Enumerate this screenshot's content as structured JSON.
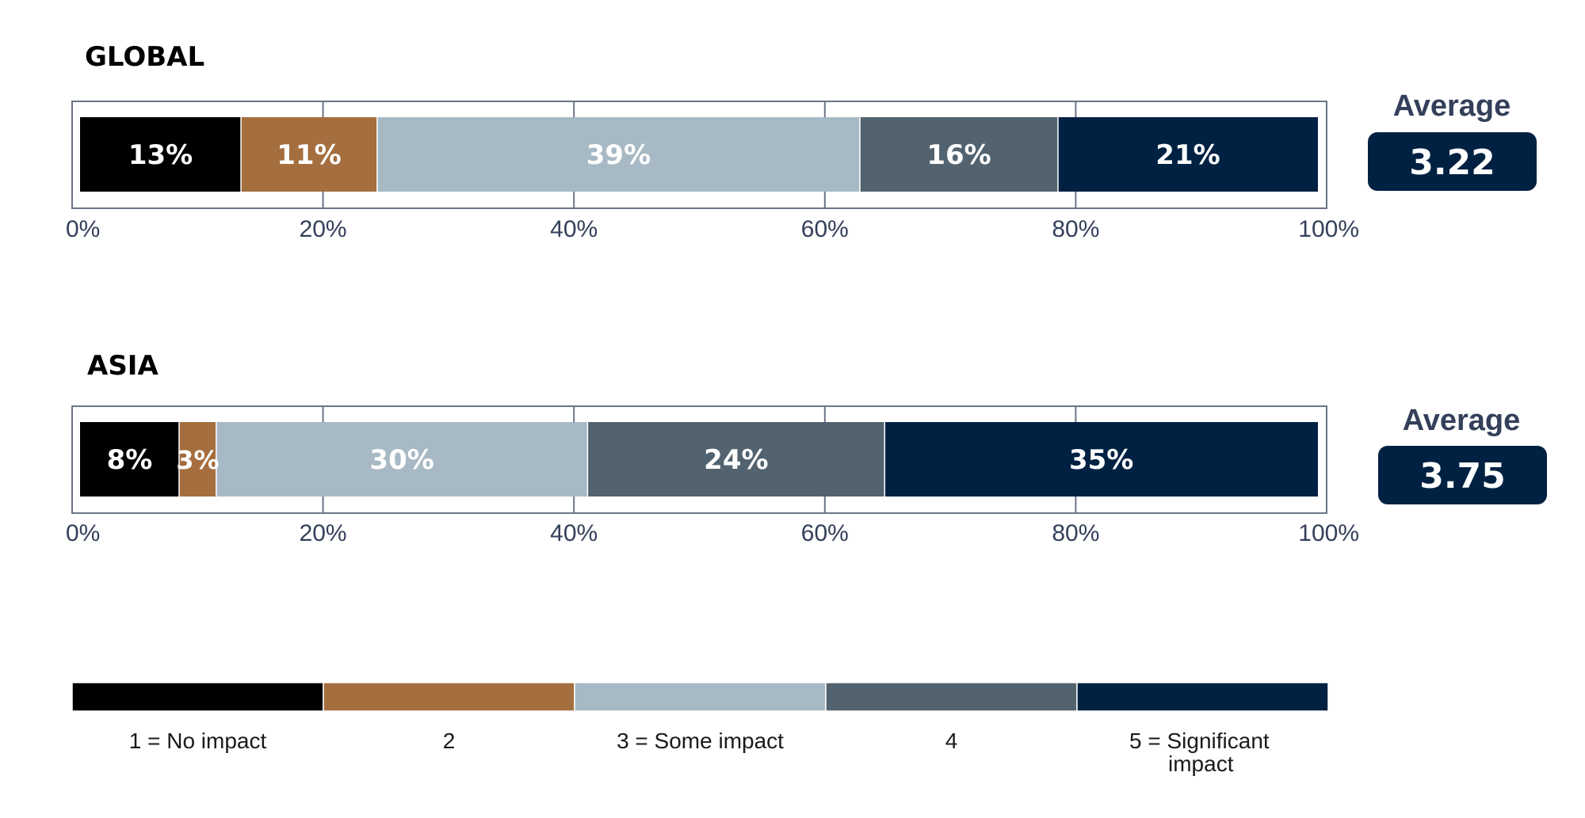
{
  "chart_data": [
    {
      "type": "bar",
      "orientation": "horizontal-stacked-100",
      "title": "GLOBAL",
      "series": [
        {
          "name": "1 = No impact",
          "value": 13,
          "label": "13%"
        },
        {
          "name": "2",
          "value": 11,
          "label": "11%"
        },
        {
          "name": "3 = Some impact",
          "value": 39,
          "label": "39%"
        },
        {
          "name": "4",
          "value": 16,
          "label": "16%"
        },
        {
          "name": "5 = Significant impact",
          "value": 21,
          "label": "21%"
        }
      ],
      "xlim": [
        0,
        100
      ],
      "x_ticks": [
        "0%",
        "20%",
        "40%",
        "60%",
        "80%",
        "100%"
      ],
      "grid": true,
      "average": {
        "label": "Average",
        "value": "3.22"
      }
    },
    {
      "type": "bar",
      "orientation": "horizontal-stacked-100",
      "title": "ASIA",
      "series": [
        {
          "name": "1 = No impact",
          "value": 8,
          "label": "8%"
        },
        {
          "name": "2",
          "value": 3,
          "label": "3%"
        },
        {
          "name": "3 = Some impact",
          "value": 30,
          "label": "30%"
        },
        {
          "name": "4",
          "value": 24,
          "label": "24%"
        },
        {
          "name": "5 = Significant impact",
          "value": 35,
          "label": "35%"
        }
      ],
      "xlim": [
        0,
        100
      ],
      "x_ticks": [
        "0%",
        "20%",
        "40%",
        "60%",
        "80%",
        "100%"
      ],
      "grid": true,
      "average": {
        "label": "Average",
        "value": "3.75"
      }
    }
  ],
  "legend": {
    "placement": "bottom",
    "items": [
      {
        "label": "1 = No impact",
        "color": "#000000"
      },
      {
        "label": "2",
        "color": "#a56e3f"
      },
      {
        "label": "3 = Some impact",
        "color": "#a7b9c4"
      },
      {
        "label": "4",
        "color": "#52636f"
      },
      {
        "label": "5 = Significant impact",
        "color": "#002142"
      }
    ]
  },
  "colors": {
    "segments": [
      "#000000",
      "#a56e3f",
      "#a7b9c4",
      "#52636f",
      "#002142"
    ],
    "frame": "#6b7488",
    "axis_text": "#34405a",
    "average_box": "#002142"
  }
}
